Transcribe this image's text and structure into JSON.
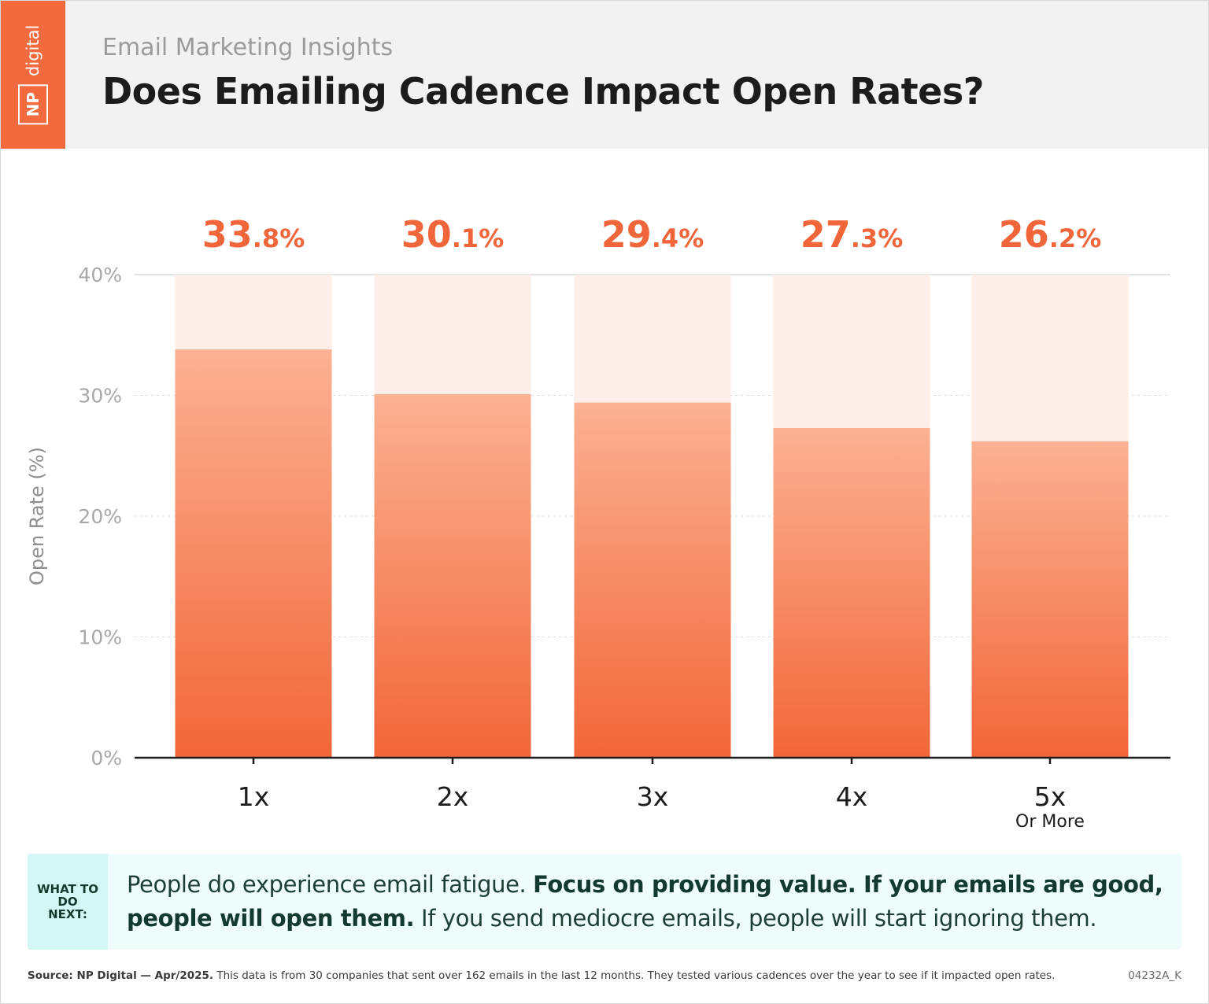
{
  "header": {
    "logo_np": "NP",
    "logo_digital": "digital",
    "subtitle": "Email Marketing Insights",
    "title": "Does Emailing Cadence Impact Open Rates?"
  },
  "chart_data": {
    "type": "bar",
    "title": "Does Emailing Cadence Impact Open Rates?",
    "subtitle": "Email Marketing Insights",
    "ylabel": "Open Rate (%)",
    "xlabel": "",
    "ylim": [
      0,
      40
    ],
    "yticks": [
      0,
      10,
      20,
      30,
      40
    ],
    "ytick_labels": [
      "0%",
      "10%",
      "20%",
      "30%",
      "40%"
    ],
    "grid": true,
    "categories": [
      "1x",
      "2x",
      "3x",
      "4x",
      "5x"
    ],
    "category_sublabels": [
      "",
      "",
      "",
      "",
      "Or More"
    ],
    "values": [
      33.8,
      30.1,
      29.4,
      27.3,
      26.2
    ],
    "value_labels": [
      {
        "int": "33",
        "dec": ".8%"
      },
      {
        "int": "30",
        "dec": ".1%"
      },
      {
        "int": "29",
        "dec": ".4%"
      },
      {
        "int": "27",
        "dec": ".3%"
      },
      {
        "int": "26",
        "dec": ".2%"
      }
    ],
    "colors": {
      "bar_top": "#fbb193",
      "bar_bottom": "#f26638",
      "track": "#fdeee9",
      "value_label": "#f0663a"
    }
  },
  "callout": {
    "tag_line1": "WHAT TO",
    "tag_line2": "DO NEXT:",
    "text_1": "People do experience email fatigue. ",
    "text_bold": "Focus on providing value. If your emails are good, people will open them.",
    "text_2": " If you send mediocre emails, people will start ignoring them."
  },
  "footer": {
    "source_bold": "Source: NP Digital — Apr/2025.",
    "source_text": "  This data is from 30 companies that sent over 162 emails in the last 12 months. They tested various cadences over the year to see if it impacted open rates.",
    "code": "04232A_K"
  }
}
